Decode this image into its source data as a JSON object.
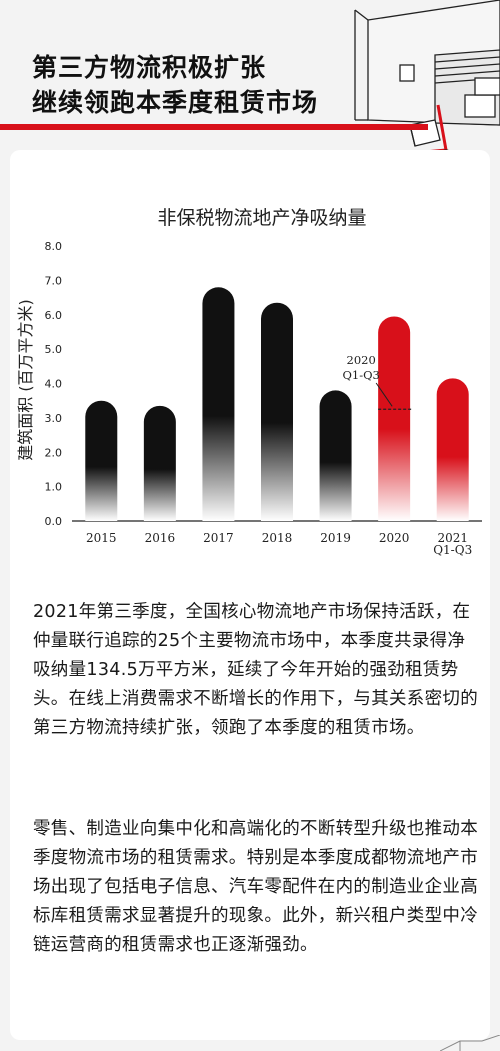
{
  "header": {
    "title_line1": "第三方物流积极扩张",
    "title_line2": "继续领跑本季度租赁市场"
  },
  "chart_data": {
    "type": "bar",
    "title": "非保税物流地产净吸纳量",
    "ylabel": "建筑面积 (百万平方米)",
    "xlabel": "",
    "categories": [
      "2015",
      "2016",
      "2017",
      "2018",
      "2019",
      "2020",
      "2021\nQ1-Q3"
    ],
    "values": [
      3.5,
      3.35,
      6.8,
      6.35,
      3.8,
      5.95,
      4.15
    ],
    "ylim": [
      0,
      8
    ],
    "yticks": [
      "0.0",
      "1.0",
      "2.0",
      "3.0",
      "4.0",
      "5.0",
      "6.0",
      "7.0",
      "8.0"
    ],
    "bar_colors": [
      "black",
      "black",
      "black",
      "black",
      "black",
      "red",
      "red"
    ],
    "annotation": {
      "text_line1": "2020",
      "text_line2": "Q1-Q3",
      "target_category": "2020",
      "value": 3.25
    },
    "colors": {
      "black_bar": "#111111",
      "red_bar": "#d8101a",
      "axis": "#222222"
    },
    "grid": false
  },
  "body": {
    "paragraph1": "2021年第三季度，全国核心物流地产市场保持活跃，在仲量联行追踪的25个主要物流市场中，本季度共录得净吸纳量134.5万平方米，延续了今年开始的强劲租赁势头。在线上消费需求不断增长的作用下，与其关系密切的第三方物流持续扩张，领跑了本季度的租赁市场。",
    "paragraph2": "零售、制造业向集中化和高端化的不断转型升级也推动本季度物流市场的租赁需求。特别是本季度成都物流地产市场出现了包括电子信息、汽车零配件在内的制造业企业高标库租赁需求显著提升的现象。此外，新兴租户类型中冷链运营商的租赁需求也正逐渐强劲。"
  },
  "colors": {
    "accent": "#d8101a",
    "background": "#f3f3f3",
    "card": "#ffffff"
  },
  "icons": {
    "header": "warehouse-hand-truck-illustration",
    "footer": "house-outline-icon"
  }
}
